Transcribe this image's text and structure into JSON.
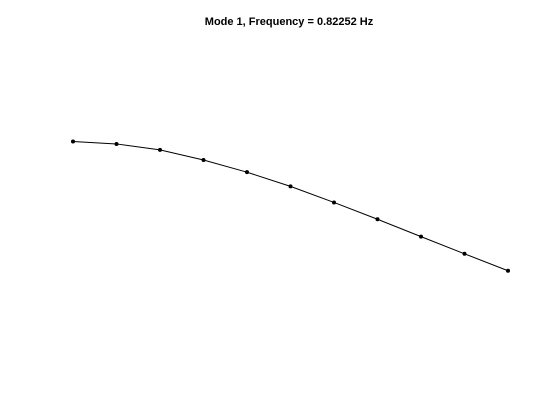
{
  "window": {
    "background_color": "#ffffff"
  },
  "chart_data": {
    "type": "line",
    "title": "Mode 1, Frequency = 0.82252 Hz",
    "xlabel": "",
    "ylabel": "",
    "axes_visible": false,
    "grid": false,
    "legend": "none",
    "line_color": "#000000",
    "marker": "dot",
    "xlim": [
      0,
      10
    ],
    "ylim": [
      -1.4,
      0.55
    ],
    "series": [
      {
        "x": [
          0,
          1,
          2,
          3,
          4,
          5,
          6,
          7,
          8,
          9,
          10
        ],
        "y": [
          0.0,
          -0.013,
          -0.045,
          -0.1,
          -0.166,
          -0.243,
          -0.33,
          -0.421,
          -0.515,
          -0.608,
          -0.7
        ]
      }
    ]
  }
}
